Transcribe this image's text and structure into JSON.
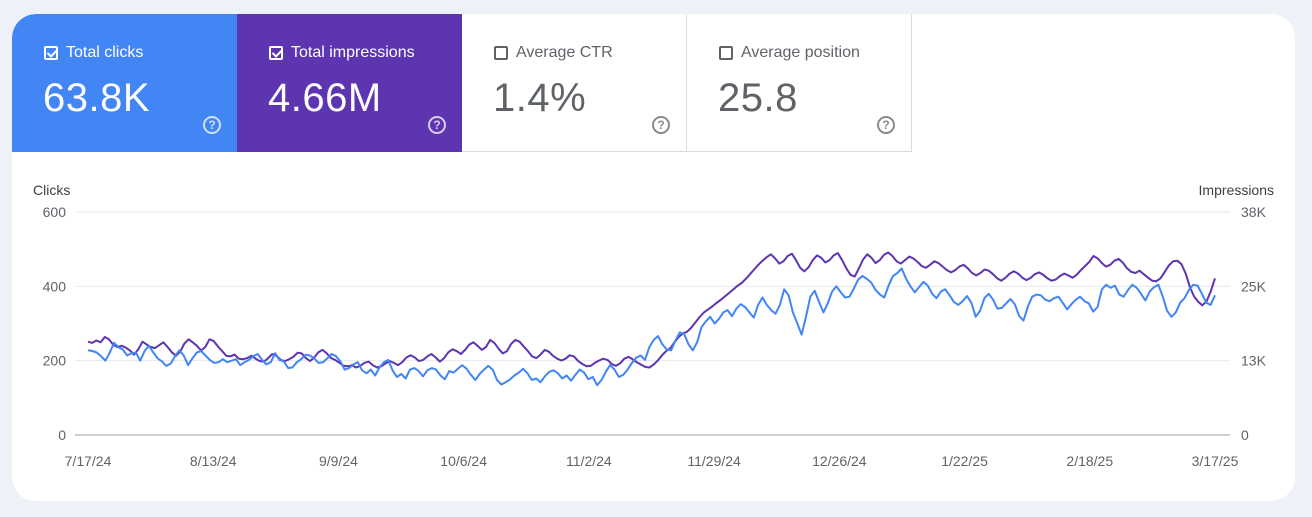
{
  "metrics": [
    {
      "label": "Total clicks",
      "value": "63.8K",
      "checked": true,
      "help_icon": "help-circle-icon"
    },
    {
      "label": "Total impressions",
      "value": "4.66M",
      "checked": true,
      "help_icon": "help-circle-icon"
    },
    {
      "label": "Average CTR",
      "value": "1.4%",
      "checked": false,
      "help_icon": "help-circle-icon"
    },
    {
      "label": "Average position",
      "value": "25.8",
      "checked": false,
      "help_icon": "help-circle-icon"
    }
  ],
  "colors": {
    "clicks": "#4285f4",
    "impressions": "#5e35b1",
    "grid": "#e8eaed",
    "axis": "#9aa0a6"
  },
  "chart_data": {
    "type": "line",
    "title": "",
    "xlabel": "",
    "ylabel": "Clicks",
    "y2label": "Impressions",
    "ylim": [
      0,
      600
    ],
    "y2lim": [
      0,
      38000
    ],
    "yticks": [
      "0",
      "200",
      "400",
      "600"
    ],
    "y2ticks": [
      "0",
      "13K",
      "25K",
      "38K"
    ],
    "x_tick_labels": [
      "7/17/24",
      "8/13/24",
      "9/9/24",
      "10/6/24",
      "11/2/24",
      "11/29/24",
      "12/26/24",
      "1/22/25",
      "2/18/25",
      "3/17/25"
    ],
    "grid": true,
    "series": [
      {
        "name": "Clicks",
        "axis": "left",
        "x_start": "7/17/24",
        "x_end": "3/17/25",
        "values": [
          228,
          226,
          222,
          212,
          200,
          222,
          248,
          236,
          230,
          214,
          220,
          222,
          200,
          226,
          240,
          222,
          206,
          198,
          186,
          192,
          212,
          228,
          214,
          188,
          206,
          222,
          226,
          214,
          202,
          194,
          196,
          204,
          196,
          200,
          204,
          188,
          196,
          202,
          212,
          218,
          202,
          190,
          196,
          220,
          202,
          198,
          180,
          182,
          196,
          204,
          216,
          214,
          206,
          194,
          196,
          206,
          218,
          212,
          198,
          176,
          180,
          190,
          196,
          174,
          166,
          176,
          160,
          182,
          196,
          202,
          174,
          156,
          164,
          152,
          176,
          180,
          172,
          158,
          174,
          180,
          176,
          160,
          150,
          172,
          168,
          178,
          188,
          178,
          162,
          148,
          164,
          176,
          186,
          176,
          148,
          136,
          142,
          150,
          160,
          168,
          178,
          166,
          148,
          152,
          142,
          158,
          170,
          174,
          166,
          152,
          160,
          146,
          162,
          176,
          168,
          150,
          156,
          134,
          148,
          170,
          188,
          176,
          156,
          162,
          176,
          194,
          208,
          214,
          202,
          236,
          256,
          266,
          244,
          230,
          228,
          254,
          276,
          272,
          244,
          228,
          250,
          290,
          306,
          318,
          300,
          312,
          330,
          336,
          320,
          340,
          352,
          344,
          330,
          316,
          350,
          370,
          350,
          336,
          326,
          350,
          392,
          376,
          330,
          300,
          270,
          318,
          372,
          388,
          358,
          330,
          354,
          386,
          400,
          384,
          370,
          372,
          394,
          418,
          428,
          420,
          410,
          390,
          378,
          370,
          402,
          428,
          436,
          448,
          420,
          400,
          384,
          398,
          412,
          402,
          380,
          368,
          386,
          392,
          376,
          358,
          350,
          360,
          374,
          356,
          318,
          334,
          368,
          380,
          364,
          340,
          342,
          354,
          366,
          352,
          320,
          308,
          346,
          372,
          378,
          376,
          364,
          360,
          368,
          372,
          356,
          338,
          352,
          364,
          372,
          360,
          354,
          332,
          344,
          392,
          404,
          396,
          402,
          378,
          372,
          390,
          404,
          396,
          380,
          362,
          386,
          398,
          404,
          372,
          334,
          318,
          330,
          356,
          368,
          390,
          404,
          402,
          380,
          356,
          350,
          376
        ]
      },
      {
        "name": "Impressions",
        "axis": "right",
        "x_start": "7/17/24",
        "x_end": "3/17/25",
        "values": [
          15900,
          15700,
          16100,
          15800,
          16700,
          16300,
          15400,
          15000,
          15200,
          14900,
          14400,
          13700,
          14600,
          15900,
          15400,
          15000,
          14800,
          15300,
          15800,
          15000,
          14100,
          13500,
          14200,
          15600,
          16300,
          15800,
          15200,
          14400,
          15000,
          16300,
          16000,
          15100,
          14300,
          13500,
          13400,
          13700,
          13000,
          12900,
          13100,
          13500,
          13000,
          12600,
          12500,
          13100,
          13800,
          13500,
          12800,
          12600,
          12900,
          13300,
          14000,
          13900,
          13100,
          12600,
          13200,
          14100,
          14500,
          13900,
          13100,
          12800,
          12300,
          11800,
          11700,
          11900,
          11500,
          11800,
          12300,
          12500,
          11900,
          11500,
          11700,
          12200,
          12600,
          12300,
          11900,
          12400,
          13200,
          13600,
          13200,
          12600,
          12800,
          13400,
          13800,
          13200,
          12500,
          13100,
          14100,
          14600,
          14300,
          13800,
          14500,
          15400,
          15800,
          15200,
          14500,
          15000,
          16200,
          15700,
          14700,
          13900,
          14300,
          15500,
          16200,
          15900,
          15100,
          14300,
          13400,
          13100,
          13700,
          14500,
          14200,
          13500,
          13000,
          12700,
          13000,
          13600,
          13400,
          12600,
          12100,
          11700,
          11800,
          12300,
          12700,
          13000,
          12800,
          12100,
          11800,
          12200,
          13000,
          13300,
          12900,
          12400,
          12000,
          11600,
          11500,
          12000,
          12700,
          13600,
          14300,
          14800,
          15800,
          16700,
          17300,
          17600,
          18300,
          19200,
          20100,
          20900,
          21400,
          21900,
          22500,
          23000,
          23600,
          24200,
          24800,
          25400,
          25900,
          26600,
          27400,
          28200,
          29000,
          29700,
          30300,
          30800,
          30100,
          29200,
          29600,
          30500,
          30900,
          29800,
          28500,
          27900,
          28600,
          29800,
          30600,
          30200,
          29400,
          29800,
          30600,
          31000,
          29800,
          28400,
          27300,
          27000,
          28400,
          29900,
          30800,
          30200,
          29300,
          29800,
          30700,
          31100,
          30500,
          29600,
          29200,
          29800,
          30400,
          30100,
          29500,
          28800,
          28500,
          29000,
          29600,
          29300,
          28700,
          28100,
          27700,
          28100,
          28700,
          29000,
          28400,
          27600,
          27200,
          27600,
          28200,
          28000,
          27400,
          26700,
          26300,
          26800,
          27500,
          27900,
          27500,
          26800,
          26400,
          26800,
          27400,
          27700,
          27300,
          26700,
          26300,
          26500,
          27100,
          27500,
          27200,
          26800,
          27300,
          28100,
          28800,
          29500,
          30500,
          30100,
          29300,
          28700,
          29000,
          29700,
          30000,
          29400,
          28400,
          27800,
          27600,
          28000,
          27400,
          26800,
          26300,
          26200,
          26700,
          27800,
          28900,
          29600,
          29700,
          29100,
          27500,
          25200,
          23600,
          22700,
          22100,
          22800,
          24500,
          26700
        ]
      }
    ]
  }
}
